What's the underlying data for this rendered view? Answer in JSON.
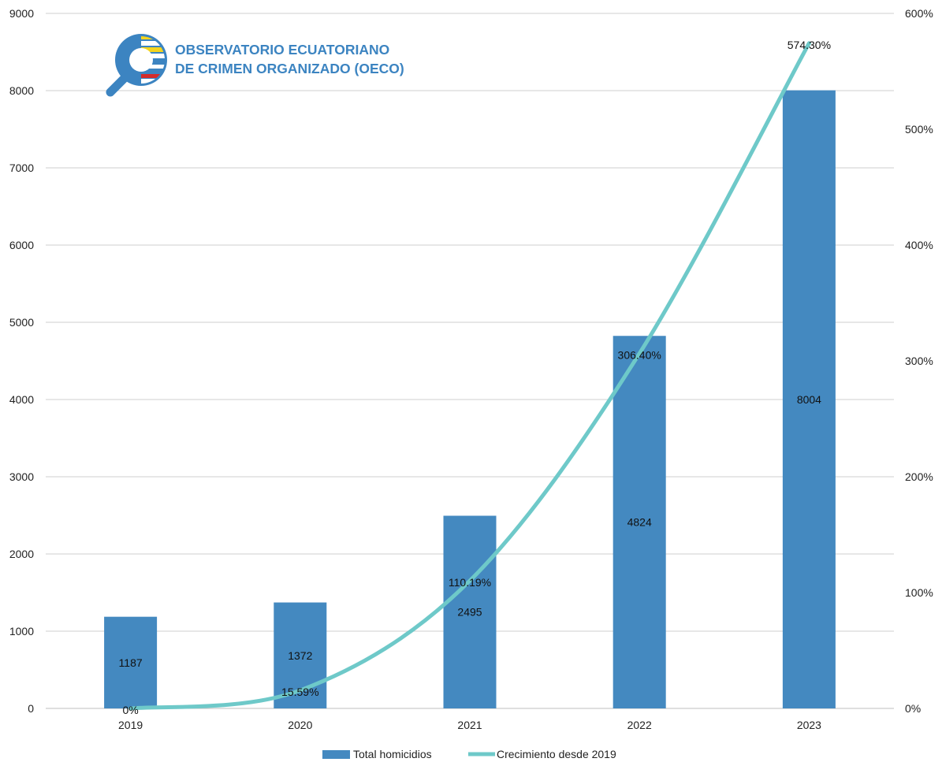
{
  "logo": {
    "line1": "OBSERVATORIO ECUATORIANO",
    "line2": "DE CRIMEN ORGANIZADO (OECO)"
  },
  "colors": {
    "bar": "#4489c0",
    "line": "#6ec9c9",
    "grid": "#cfcfcf",
    "logo_blue": "#3c84c1",
    "logo_yellow": "#f4d41d",
    "logo_red": "#d42b2b"
  },
  "chart_data": {
    "type": "bar",
    "categories": [
      "2019",
      "2020",
      "2021",
      "2022",
      "2023"
    ],
    "series": [
      {
        "name": "Total homicidios",
        "type": "bar",
        "axis": "left",
        "values": [
          1187,
          1372,
          2495,
          4824,
          8004
        ],
        "labels": [
          "1187",
          "1372",
          "2495",
          "4824",
          "8004"
        ]
      },
      {
        "name": "Crecimiento desde 2019",
        "type": "line",
        "axis": "right",
        "values": [
          0,
          15.59,
          110.19,
          306.4,
          574.3
        ],
        "labels": [
          "0%",
          "15.59%",
          "110.19%",
          "306.40%",
          "574.30%"
        ]
      }
    ],
    "y_left": {
      "lim": [
        0,
        9000
      ],
      "ticks": [
        "0",
        "1000",
        "2000",
        "3000",
        "4000",
        "5000",
        "6000",
        "7000",
        "8000",
        "9000"
      ]
    },
    "y_right": {
      "lim": [
        0,
        600
      ],
      "ticks": [
        "0%",
        "100%",
        "200%",
        "300%",
        "400%",
        "500%",
        "600%"
      ]
    },
    "grid": true,
    "legend": "bottom"
  }
}
